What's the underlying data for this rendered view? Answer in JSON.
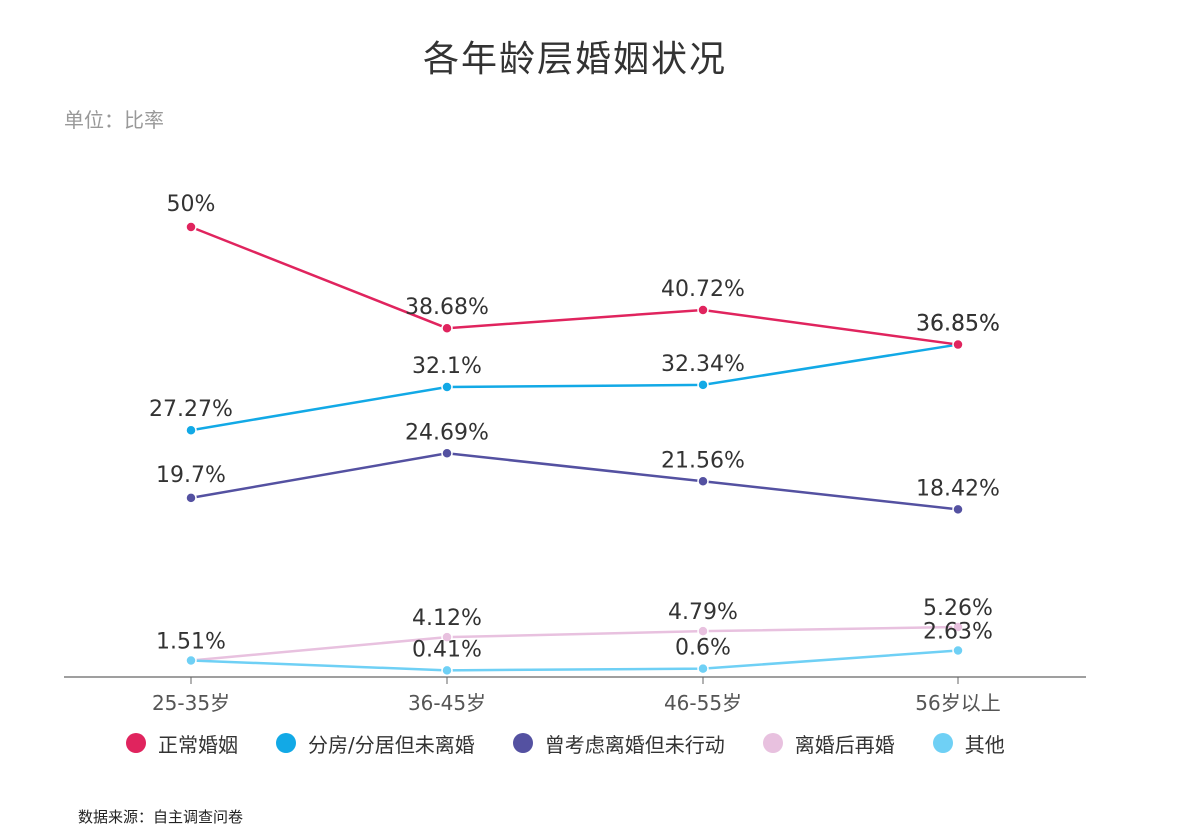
{
  "chart_data": {
    "type": "line",
    "title": "各年龄层婚姻状况",
    "unit_label": "单位：比率",
    "source": "数据来源：自主调查问卷",
    "categories": [
      "25-35岁",
      "36-45岁",
      "46-55岁",
      "56岁以上"
    ],
    "ylim": [
      0,
      50
    ],
    "series": [
      {
        "name": "正常婚姻",
        "color": "#e0245e",
        "values": [
          50,
          38.68,
          40.72,
          36.85
        ],
        "labels": [
          "50%",
          "38.68%",
          "40.72%",
          "36.85%"
        ]
      },
      {
        "name": "分房/分居但未离婚",
        "color": "#12a9e6",
        "values": [
          27.27,
          32.1,
          32.34,
          36.85
        ],
        "labels": [
          "27.27%",
          "32.1%",
          "32.34%",
          "36.85%"
        ]
      },
      {
        "name": "曾考虑离婚但未行动",
        "color": "#5451a1",
        "values": [
          19.7,
          24.69,
          21.56,
          18.42
        ],
        "labels": [
          "19.7%",
          "24.69%",
          "21.56%",
          "18.42%"
        ]
      },
      {
        "name": "离婚后再婚",
        "color": "#e8c1df",
        "values": [
          1.51,
          4.12,
          4.79,
          5.26
        ],
        "labels": [
          "1.51%",
          "4.12%",
          "4.79%",
          "5.26%"
        ]
      },
      {
        "name": "其他",
        "color": "#6fd0f5",
        "values": [
          1.51,
          0.41,
          0.6,
          2.63
        ],
        "labels": [
          "1.51%",
          "0.41%",
          "0.6%",
          "2.63%"
        ]
      }
    ]
  }
}
